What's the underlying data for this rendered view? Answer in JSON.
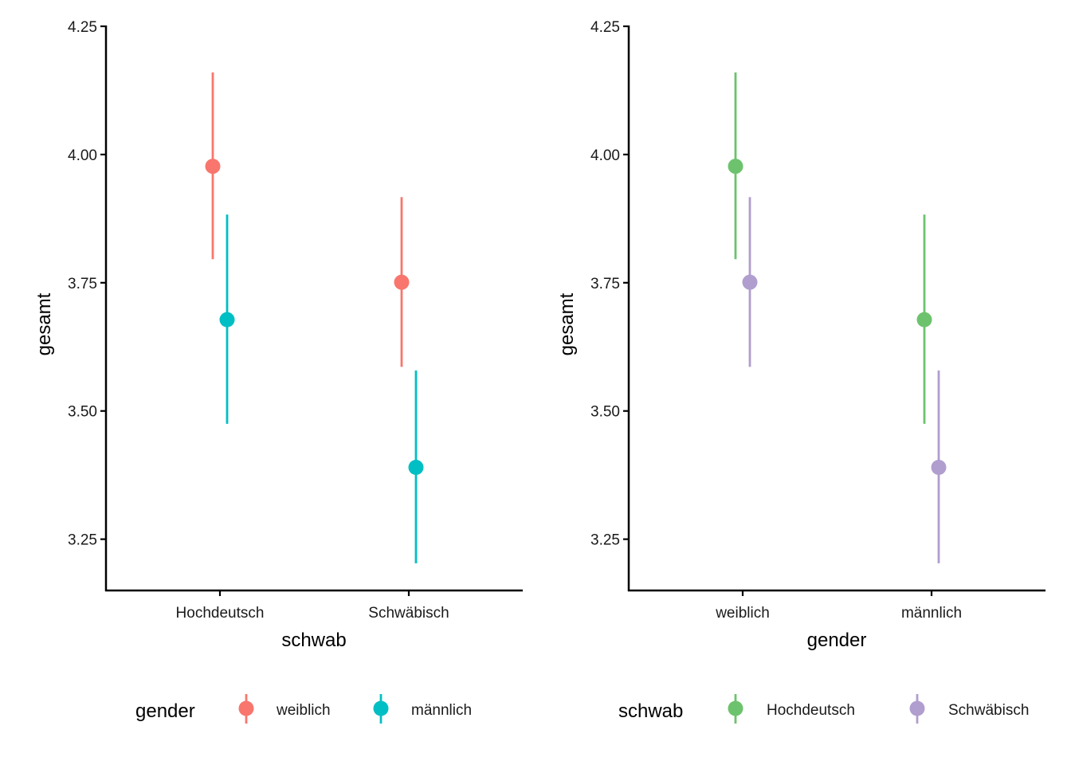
{
  "chart_data": [
    {
      "type": "errorbar",
      "xlabel": "schwab",
      "ylabel": "gesamt",
      "ylim": [
        3.15,
        4.25
      ],
      "yticks": [
        "3.25",
        "3.50",
        "3.75",
        "4.00",
        "4.25"
      ],
      "ytick_values": [
        3.25,
        3.5,
        3.75,
        4.0,
        4.25
      ],
      "categories": [
        "Hochdeutsch",
        "Schwäbisch"
      ],
      "legend": {
        "title": "gender",
        "position": "bottom",
        "entries": [
          "weiblich",
          "männlich"
        ]
      },
      "series": [
        {
          "name": "weiblich",
          "color": "#F8766D",
          "values": [
            3.977,
            3.751
          ],
          "lower": [
            3.796,
            3.586
          ],
          "upper": [
            4.16,
            3.917
          ]
        },
        {
          "name": "männlich",
          "color": "#00BFC4",
          "values": [
            3.678,
            3.39
          ],
          "lower": [
            3.475,
            3.203
          ],
          "upper": [
            3.883,
            3.579
          ]
        }
      ],
      "grid": false
    },
    {
      "type": "errorbar",
      "xlabel": "gender",
      "ylabel": "gesamt",
      "ylim": [
        3.15,
        4.25
      ],
      "yticks": [
        "3.25",
        "3.50",
        "3.75",
        "4.00",
        "4.25"
      ],
      "ytick_values": [
        3.25,
        3.5,
        3.75,
        4.0,
        4.25
      ],
      "categories": [
        "weiblich",
        "männlich"
      ],
      "legend": {
        "title": "schwab",
        "position": "bottom",
        "entries": [
          "Hochdeutsch",
          "Schwäbisch"
        ]
      },
      "series": [
        {
          "name": "Hochdeutsch",
          "color": "#6DC36D",
          "values": [
            3.977,
            3.678
          ],
          "lower": [
            3.796,
            3.475
          ],
          "upper": [
            4.16,
            3.883
          ]
        },
        {
          "name": "Schwäbisch",
          "color": "#B09ECE",
          "values": [
            3.751,
            3.39
          ],
          "lower": [
            3.586,
            3.203
          ],
          "upper": [
            3.917,
            3.579
          ]
        }
      ],
      "grid": false
    }
  ]
}
